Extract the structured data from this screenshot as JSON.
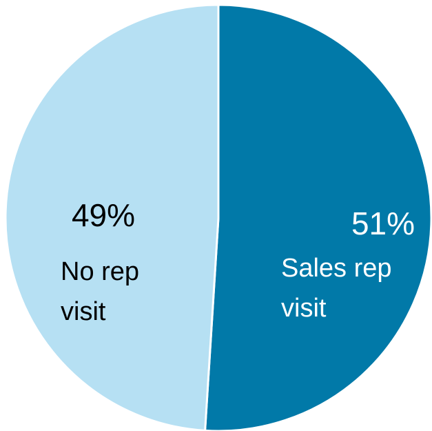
{
  "chart_data": {
    "type": "pie",
    "slices": [
      {
        "label_lines": [
          "Sales rep",
          "visit"
        ],
        "value": 51,
        "value_label": "51%",
        "color": "#0179a8",
        "text_color": "#ffffff"
      },
      {
        "label_lines": [
          "No rep",
          "visit"
        ],
        "value": 49,
        "value_label": "49%",
        "color": "#b6e0f3",
        "text_color": "#000000"
      }
    ],
    "start": "12 o'clock",
    "direction": "clockwise",
    "legend": "none",
    "slice_border_color": "#ffffff"
  }
}
